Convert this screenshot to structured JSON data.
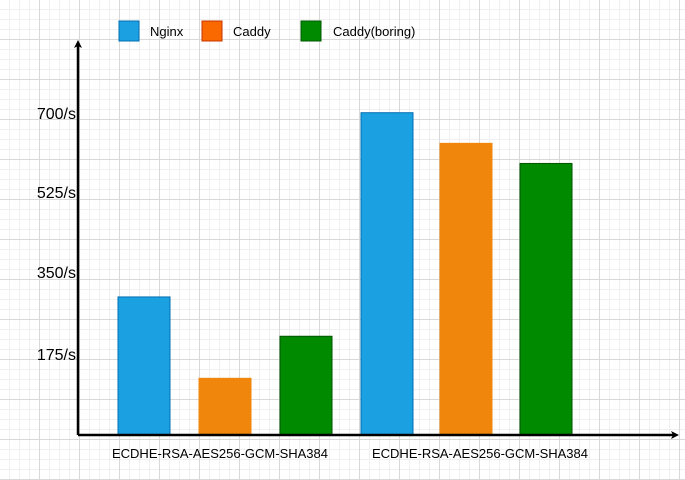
{
  "chart_data": {
    "type": "bar",
    "title": "",
    "xlabel": "",
    "ylabel": "",
    "ylim": [
      0,
      700
    ],
    "y_ticks": [
      175,
      350,
      525,
      700
    ],
    "y_tick_labels": [
      "175/s",
      "350/s",
      "525/s",
      "700/s"
    ],
    "categories": [
      "ECDHE-RSA-AES256-GCM-SHA384",
      "ECDHE-RSA-AES256-GCM-SHA384"
    ],
    "series": [
      {
        "name": "Nginx",
        "color": "#1ba1e2",
        "values": [
          302,
          705
        ]
      },
      {
        "name": "Caddy",
        "color": "#f0870c",
        "values": [
          124,
          638
        ]
      },
      {
        "name": "Caddy(boring)",
        "color": "#008a00",
        "values": [
          216,
          594
        ]
      }
    ],
    "legend_position": "top",
    "grid": true
  }
}
